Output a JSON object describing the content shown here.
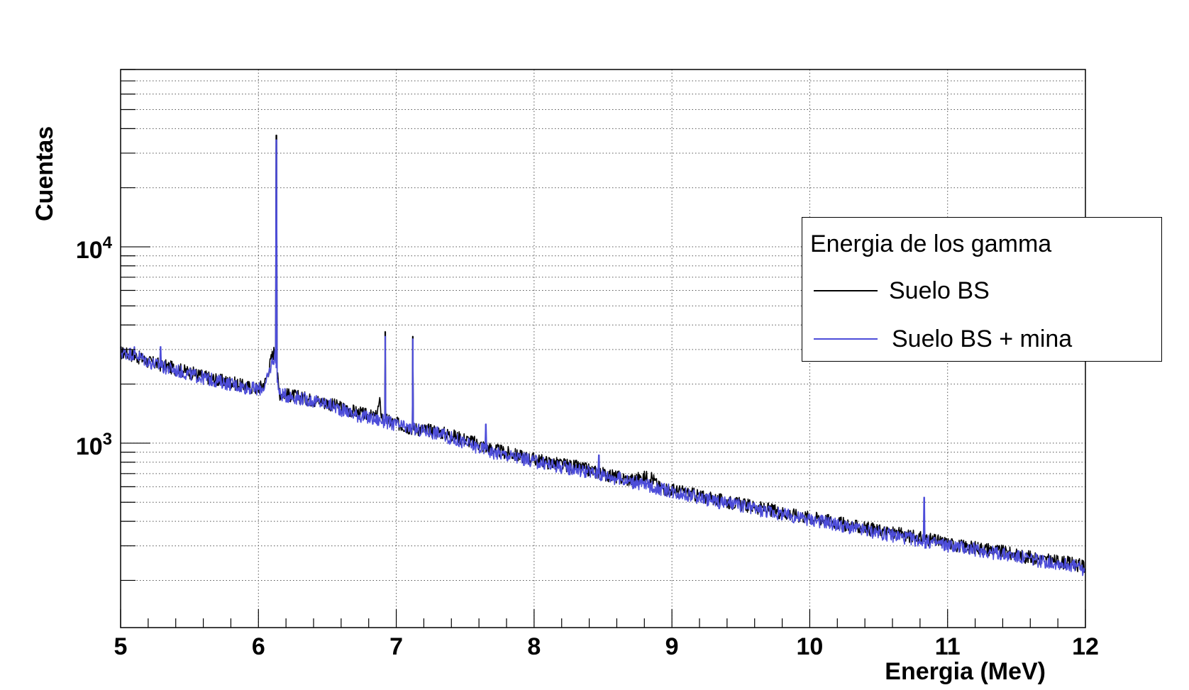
{
  "chart_data": {
    "type": "line",
    "xlabel": "Energia (MeV)",
    "ylabel": "Cuentas",
    "xlim": [
      5,
      12
    ],
    "ylim": [
      115,
      80000
    ],
    "yscale": "log",
    "grid": true,
    "x_ticks": [
      "5",
      "6",
      "7",
      "8",
      "9",
      "10",
      "11",
      "12"
    ],
    "y_ticks": [
      {
        "base": "10",
        "exp": "3"
      },
      {
        "base": "10",
        "exp": "4"
      }
    ],
    "legend": {
      "title": "Energia de los gamma",
      "placement": "right",
      "entries": [
        " Suelo BS",
        "Suelo BS + mina"
      ]
    },
    "series": [
      {
        "name": " Suelo BS",
        "color": "#000000",
        "points": [
          [
            5.0,
            2900
          ],
          [
            5.1,
            2800
          ],
          [
            5.2,
            2600
          ],
          [
            5.3,
            2500
          ],
          [
            5.4,
            2400
          ],
          [
            5.5,
            2300
          ],
          [
            5.6,
            2200
          ],
          [
            5.7,
            2100
          ],
          [
            5.8,
            2050
          ],
          [
            5.9,
            1950
          ],
          [
            6.0,
            1900
          ],
          [
            6.05,
            2050
          ],
          [
            6.1,
            2800
          ],
          [
            6.12,
            3000
          ],
          [
            6.15,
            1800
          ],
          [
            6.3,
            1720
          ],
          [
            6.5,
            1600
          ],
          [
            6.7,
            1450
          ],
          [
            6.85,
            1350
          ],
          [
            6.88,
            1600
          ],
          [
            6.9,
            1330
          ],
          [
            7.1,
            1200
          ],
          [
            7.3,
            1150
          ],
          [
            7.5,
            1050
          ],
          [
            7.7,
            930
          ],
          [
            7.9,
            860
          ],
          [
            8.1,
            800
          ],
          [
            8.3,
            760
          ],
          [
            8.5,
            700
          ],
          [
            8.7,
            650
          ],
          [
            8.85,
            680
          ],
          [
            8.9,
            600
          ],
          [
            9.1,
            560
          ],
          [
            9.3,
            520
          ],
          [
            9.5,
            490
          ],
          [
            9.7,
            460
          ],
          [
            9.9,
            430
          ],
          [
            10.1,
            410
          ],
          [
            10.3,
            380
          ],
          [
            10.5,
            360
          ],
          [
            10.7,
            340
          ],
          [
            10.9,
            320
          ],
          [
            11.1,
            300
          ],
          [
            11.3,
            290
          ],
          [
            11.5,
            270
          ],
          [
            11.7,
            255
          ],
          [
            11.9,
            245
          ],
          [
            12.0,
            235
          ]
        ],
        "peaks": [
          [
            6.13,
            37000
          ],
          [
            6.92,
            3700
          ],
          [
            7.12,
            3500
          ]
        ]
      },
      {
        "name": "Suelo BS + mina",
        "color": "#4d4dd9",
        "points": [
          [
            5.0,
            2900
          ],
          [
            5.1,
            2850
          ],
          [
            5.2,
            2600
          ],
          [
            5.3,
            2450
          ],
          [
            5.4,
            2350
          ],
          [
            5.5,
            2250
          ],
          [
            5.6,
            2150
          ],
          [
            5.7,
            2080
          ],
          [
            5.8,
            2000
          ],
          [
            5.9,
            1930
          ],
          [
            6.0,
            1880
          ],
          [
            6.05,
            1950
          ],
          [
            6.1,
            2600
          ],
          [
            6.12,
            2800
          ],
          [
            6.15,
            1780
          ],
          [
            6.3,
            1700
          ],
          [
            6.5,
            1580
          ],
          [
            6.7,
            1400
          ],
          [
            6.85,
            1320
          ],
          [
            6.9,
            1300
          ],
          [
            7.1,
            1180
          ],
          [
            7.3,
            1130
          ],
          [
            7.5,
            1000
          ],
          [
            7.7,
            900
          ],
          [
            7.9,
            840
          ],
          [
            8.1,
            780
          ],
          [
            8.3,
            740
          ],
          [
            8.5,
            690
          ],
          [
            8.7,
            640
          ],
          [
            8.9,
            590
          ],
          [
            9.1,
            550
          ],
          [
            9.3,
            510
          ],
          [
            9.5,
            480
          ],
          [
            9.7,
            450
          ],
          [
            9.9,
            420
          ],
          [
            10.1,
            400
          ],
          [
            10.3,
            370
          ],
          [
            10.5,
            350
          ],
          [
            10.7,
            330
          ],
          [
            10.9,
            310
          ],
          [
            11.1,
            295
          ],
          [
            11.3,
            280
          ],
          [
            11.5,
            265
          ],
          [
            11.7,
            250
          ],
          [
            11.9,
            240
          ],
          [
            12.0,
            225
          ]
        ],
        "peaks": [
          [
            5.1,
            3100
          ],
          [
            5.29,
            3100
          ],
          [
            6.13,
            35000
          ],
          [
            6.92,
            3500
          ],
          [
            7.12,
            3400
          ],
          [
            7.65,
            1250
          ],
          [
            8.47,
            870
          ],
          [
            10.83,
            530
          ]
        ]
      }
    ]
  }
}
